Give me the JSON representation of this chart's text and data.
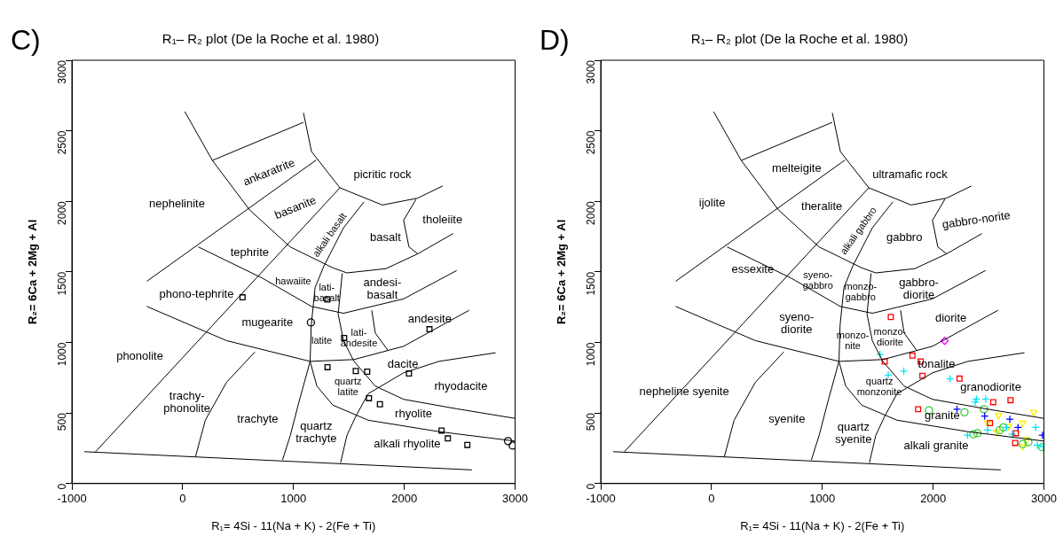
{
  "chart_data": [
    {
      "type": "scatter",
      "title": "R₁– R₂ plot (De la Roche et al. 1980)",
      "xlabel": "R₁= 4Si - 11(Na + K) - 2(Fe + Ti)",
      "ylabel": "R₂= 6Ca + 2Mg + Al",
      "xlim": [
        -1000,
        3000
      ],
      "ylim": [
        0,
        3000
      ],
      "xticks": [
        -1000,
        0,
        1000,
        2000,
        3000
      ],
      "yticks": [
        0,
        500,
        1000,
        1500,
        2000,
        2500,
        3000
      ],
      "annotations": [
        "C)",
        "ankaratrite",
        "picritic rock",
        "nephelinite",
        "basanite",
        "tholeiite",
        "alkali basalt",
        "basalt",
        "tephrite",
        "hawaiite",
        "lati-\nbasalt",
        "andesi-\nbasalt",
        "phono-tephrite",
        "mugearite",
        "andesite",
        "latite",
        "lati-\nandesite",
        "phonolite",
        "dacite",
        "quartz\nlatite",
        "rhyodacite",
        "trachy-\nphonolite",
        "rhyolite",
        "trachyte",
        "quartz\ntrachyte",
        "alkali rhyolite"
      ],
      "series": [
        {
          "type": "line",
          "color": "#000000",
          "marker": "none",
          "x": [
            -888,
            2610
          ],
          "values": [
            226,
            97
          ]
        },
        {
          "type": "line",
          "color": "#000000",
          "marker": "none",
          "x": [
            19,
            268,
            604,
            971,
            1355,
            1482,
            1834,
            2121,
            2441
          ],
          "values": [
            2636,
            2290,
            1939,
            1677,
            1529,
            1493,
            1523,
            1628,
            1772
          ]
        },
        {
          "type": "line",
          "color": "#000000",
          "marker": "none",
          "x": [
            1090,
            1163,
            1419,
            1802,
            2121,
            2345
          ],
          "values": [
            2627,
            2352,
            2096,
            1974,
            2023,
            2109
          ]
        },
        {
          "type": "line",
          "color": "#000000",
          "marker": "none",
          "x": [
            268,
            1090
          ],
          "values": [
            2290,
            2560
          ]
        },
        {
          "type": "line",
          "color": "#000000",
          "marker": "none",
          "x": [
            -323,
            1205
          ],
          "values": [
            1434,
            2293
          ]
        },
        {
          "type": "line",
          "color": "#000000",
          "marker": "none",
          "x": [
            1419,
            -786
          ],
          "values": [
            2096,
            226
          ]
        },
        {
          "type": "line",
          "color": "#000000",
          "marker": "none",
          "x": [
            1636,
            1451,
            1275,
            1195,
            1160,
            1150,
            1211,
            1355,
            1674,
            2313,
            3000
          ],
          "values": [
            1996,
            1812,
            1542,
            1390,
            1121,
            866,
            691,
            556,
            449,
            368,
            301
          ]
        },
        {
          "type": "line",
          "color": "#000000",
          "marker": "none",
          "x": [
            141,
            716,
            1163,
            1451,
            1994,
            2473
          ],
          "values": [
            1677,
            1457,
            1255,
            1207,
            1309,
            1510
          ]
        },
        {
          "type": "line",
          "color": "#000000",
          "marker": "none",
          "x": [
            -323,
            396,
            1150,
            1546,
            1994,
            2585
          ],
          "values": [
            1255,
            1013,
            866,
            879,
            973,
            1228
          ]
        },
        {
          "type": "line",
          "color": "#000000",
          "marker": "none",
          "x": [
            2824,
            2313,
            1994,
            1674,
            1562,
            1482,
            1425
          ],
          "values": [
            927,
            866,
            785,
            637,
            476,
            341,
            148
          ]
        },
        {
          "type": "line",
          "color": "#000000",
          "marker": "none",
          "x": [
            1440,
            1403,
            1451,
            1546,
            1738,
            1994,
            2473,
            3000
          ],
          "values": [
            1490,
            1202,
            1013,
            866,
            691,
            597,
            530,
            462
          ]
        },
        {
          "type": "line",
          "color": "#000000",
          "marker": "none",
          "x": [
            1706,
            1738,
            1850
          ],
          "values": [
            1228,
            1067,
            946
          ]
        },
        {
          "type": "line",
          "color": "#000000",
          "marker": "none",
          "x": [
            2106,
            1994,
            2042,
            2121
          ],
          "values": [
            2015,
            1866,
            1677,
            1628
          ]
        },
        {
          "type": "line",
          "color": "#000000",
          "marker": "none",
          "x": [
            652,
            396,
            204,
            115
          ],
          "values": [
            933,
            718,
            449,
            188
          ]
        },
        {
          "type": "line",
          "color": "#000000",
          "marker": "none",
          "x": [
            1150,
            1051,
            971,
            901
          ],
          "values": [
            866,
            583,
            341,
            167
          ]
        },
        {
          "type": "scatter",
          "color": "#000000",
          "marker": "square",
          "x": [
            540,
            1305,
            1457,
            2227,
            1307,
            1562,
            1665,
            2042,
            1681,
            1780,
            2336,
            2393,
            2569
          ],
          "values": [
            1320,
            1305,
            1032,
            1094,
            825,
            798,
            793,
            780,
            605,
            562,
            376,
            320,
            274
          ]
        },
        {
          "type": "scatter",
          "color": "#000000",
          "marker": "circle",
          "x": [
            1157,
            2936,
            2978
          ],
          "values": [
            1142,
            301,
            269
          ]
        }
      ]
    },
    {
      "type": "scatter",
      "title": "R₁– R₂ plot (De la Roche et al. 1980)",
      "xlabel": "R₁= 4Si - 11(Na + K) - 2(Fe + Ti)",
      "ylabel": "R₂= 6Ca + 2Mg + Al",
      "xlim": [
        -1000,
        3000
      ],
      "ylim": [
        0,
        3000
      ],
      "xticks": [
        -1000,
        0,
        1000,
        2000,
        3000
      ],
      "yticks": [
        0,
        500,
        1000,
        1500,
        2000,
        2500,
        3000
      ],
      "annotations": [
        "D)",
        "melteigite",
        "ultramafic rock",
        "ijolite",
        "theralite",
        "gabbro-norite",
        "alkali gabbro",
        "gabbro",
        "essexite",
        "syeno-\ngabbro",
        "monzo-\ngabbro",
        "gabbro-\ndiorite",
        "syeno-\ndiorite",
        "diorite",
        "monzo-\nnite",
        "monzo-\ndiorite",
        "tonalite",
        "quartz\nmonzonite",
        "granodiorite",
        "nepheline syenite",
        "granite",
        "syenite",
        "quartz\nsyenite",
        "alkali granite"
      ],
      "series": [
        {
          "type": "line",
          "color": "#000000",
          "marker": "none",
          "x": [
            -888,
            2610
          ],
          "values": [
            226,
            97
          ]
        },
        {
          "type": "line",
          "color": "#000000",
          "marker": "none",
          "x": [
            19,
            268,
            604,
            971,
            1355,
            1482,
            1834,
            2121,
            2441
          ],
          "values": [
            2636,
            2290,
            1939,
            1677,
            1529,
            1493,
            1523,
            1628,
            1772
          ]
        },
        {
          "type": "line",
          "color": "#000000",
          "marker": "none",
          "x": [
            1090,
            1163,
            1419,
            1802,
            2121,
            2345
          ],
          "values": [
            2627,
            2352,
            2096,
            1974,
            2023,
            2109
          ]
        },
        {
          "type": "line",
          "color": "#000000",
          "marker": "none",
          "x": [
            268,
            1090
          ],
          "values": [
            2290,
            2560
          ]
        },
        {
          "type": "line",
          "color": "#000000",
          "marker": "none",
          "x": [
            -323,
            1205
          ],
          "values": [
            1434,
            2293
          ]
        },
        {
          "type": "line",
          "color": "#000000",
          "marker": "none",
          "x": [
            1419,
            -786
          ],
          "values": [
            2096,
            226
          ]
        },
        {
          "type": "line",
          "color": "#000000",
          "marker": "none",
          "x": [
            1636,
            1451,
            1275,
            1195,
            1160,
            1150,
            1211,
            1355,
            1674,
            2313,
            3000
          ],
          "values": [
            1996,
            1812,
            1542,
            1390,
            1121,
            866,
            691,
            556,
            449,
            368,
            301
          ]
        },
        {
          "type": "line",
          "color": "#000000",
          "marker": "none",
          "x": [
            141,
            716,
            1163,
            1451,
            1994,
            2473
          ],
          "values": [
            1677,
            1457,
            1255,
            1207,
            1309,
            1510
          ]
        },
        {
          "type": "line",
          "color": "#000000",
          "marker": "none",
          "x": [
            -323,
            396,
            1150,
            1546,
            1994,
            2585
          ],
          "values": [
            1255,
            1013,
            866,
            879,
            973,
            1228
          ]
        },
        {
          "type": "line",
          "color": "#000000",
          "marker": "none",
          "x": [
            2824,
            2313,
            1994,
            1674,
            1562,
            1482,
            1425
          ],
          "values": [
            927,
            866,
            785,
            637,
            476,
            341,
            148
          ]
        },
        {
          "type": "line",
          "color": "#000000",
          "marker": "none",
          "x": [
            1440,
            1403,
            1451,
            1546,
            1738,
            1994,
            2473,
            3000
          ],
          "values": [
            1490,
            1202,
            1013,
            866,
            691,
            597,
            530,
            462
          ]
        },
        {
          "type": "line",
          "color": "#000000",
          "marker": "none",
          "x": [
            1706,
            1738,
            1850
          ],
          "values": [
            1228,
            1067,
            946
          ]
        },
        {
          "type": "line",
          "color": "#000000",
          "marker": "none",
          "x": [
            2106,
            1994,
            2042,
            2121
          ],
          "values": [
            2015,
            1866,
            1677,
            1628
          ]
        },
        {
          "type": "line",
          "color": "#000000",
          "marker": "none",
          "x": [
            652,
            396,
            204,
            115
          ],
          "values": [
            933,
            718,
            449,
            188
          ]
        },
        {
          "type": "line",
          "color": "#000000",
          "marker": "none",
          "x": [
            1150,
            1051,
            971,
            901
          ],
          "values": [
            866,
            583,
            341,
            167
          ]
        },
        {
          "type": "scatter",
          "color": "#ff0000",
          "marker": "square",
          "x": [
            1618,
            1563,
            1813,
            1887,
            1903,
            2238,
            2698,
            2542,
            1864,
            2513,
            2747,
            2740
          ],
          "values": [
            1181,
            865,
            907,
            865,
            764,
            744,
            591,
            577,
            527,
            429,
            357,
            288
          ]
        },
        {
          "type": "scatter",
          "color": "#ff00ff",
          "marker": "diamond",
          "x": [
            2104
          ],
          "values": [
            1011
          ]
        },
        {
          "type": "scatter",
          "color": "#00e5ee",
          "marker": "cross",
          "x": [
            1520,
            1595,
            1735,
            2153,
            2390,
            2474,
            2380,
            2491,
            2309,
            2662,
            2925,
            2941,
            2993,
            2714
          ],
          "values": [
            915,
            769,
            797,
            742,
            599,
            599,
            577,
            379,
            343,
            398,
            398,
            272,
            264,
            349
          ]
        },
        {
          "type": "scatter",
          "color": "#0000ff",
          "marker": "cross",
          "x": [
            2215,
            2465,
            2692,
            2766,
            2987
          ],
          "values": [
            527,
            478,
            456,
            398,
            343
          ]
        },
        {
          "type": "scatter",
          "color": "#33cc33",
          "marker": "circle",
          "x": [
            1962,
            2283,
            2458,
            2364,
            2400,
            2601,
            2633,
            2808,
            2860,
            2984
          ],
          "values": [
            519,
            505,
            527,
            349,
            357,
            379,
            398,
            280,
            294,
            258
          ]
        },
        {
          "type": "scatter",
          "color": "#ffee00",
          "marker": "triangle",
          "x": [
            2591,
            2491,
            2575,
            2682,
            2808,
            2841,
            2808,
            2909
          ],
          "values": [
            483,
            429,
            363,
            407,
            429,
            313,
            264,
            505
          ]
        }
      ]
    }
  ]
}
